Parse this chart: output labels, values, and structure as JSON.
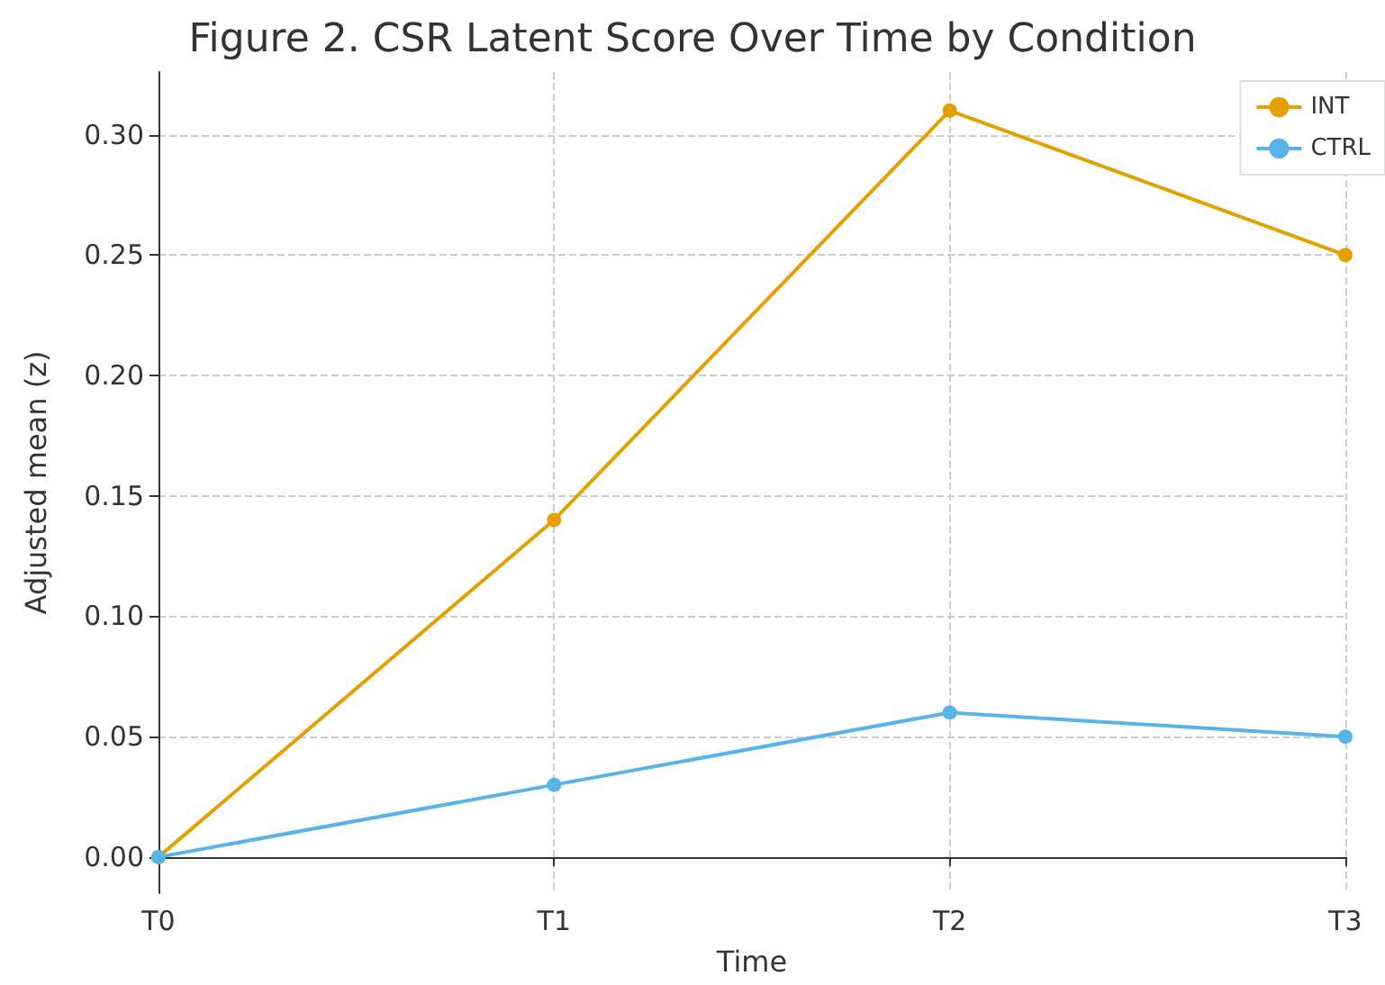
{
  "chart_data": {
    "type": "line",
    "title": "Figure 2. CSR Latent Score Over Time by Condition",
    "xlabel": "Time",
    "ylabel": "Adjusted mean (z)",
    "categories": [
      "T0",
      "T1",
      "T2",
      "T3"
    ],
    "series": [
      {
        "name": "INT",
        "color": "#e69f00",
        "values": [
          0,
          0.14,
          0.31,
          0.25
        ]
      },
      {
        "name": "CTRL",
        "color": "#56b4e9",
        "values": [
          0,
          0.03,
          0.06,
          0.05
        ]
      }
    ],
    "ylim": [
      -0.015,
      0.326
    ],
    "yticks": [
      {
        "value": 0,
        "label": "0.00"
      },
      {
        "value": 0.05,
        "label": "0.05"
      },
      {
        "value": 0.1,
        "label": "0.10"
      },
      {
        "value": 0.15,
        "label": "0.15"
      },
      {
        "value": 0.2,
        "label": "0.20"
      },
      {
        "value": 0.25,
        "label": "0.25"
      },
      {
        "value": 0.3,
        "label": "0.30"
      }
    ],
    "grid": true,
    "legend": "top right",
    "marker": "circle",
    "line_style": "solid"
  }
}
